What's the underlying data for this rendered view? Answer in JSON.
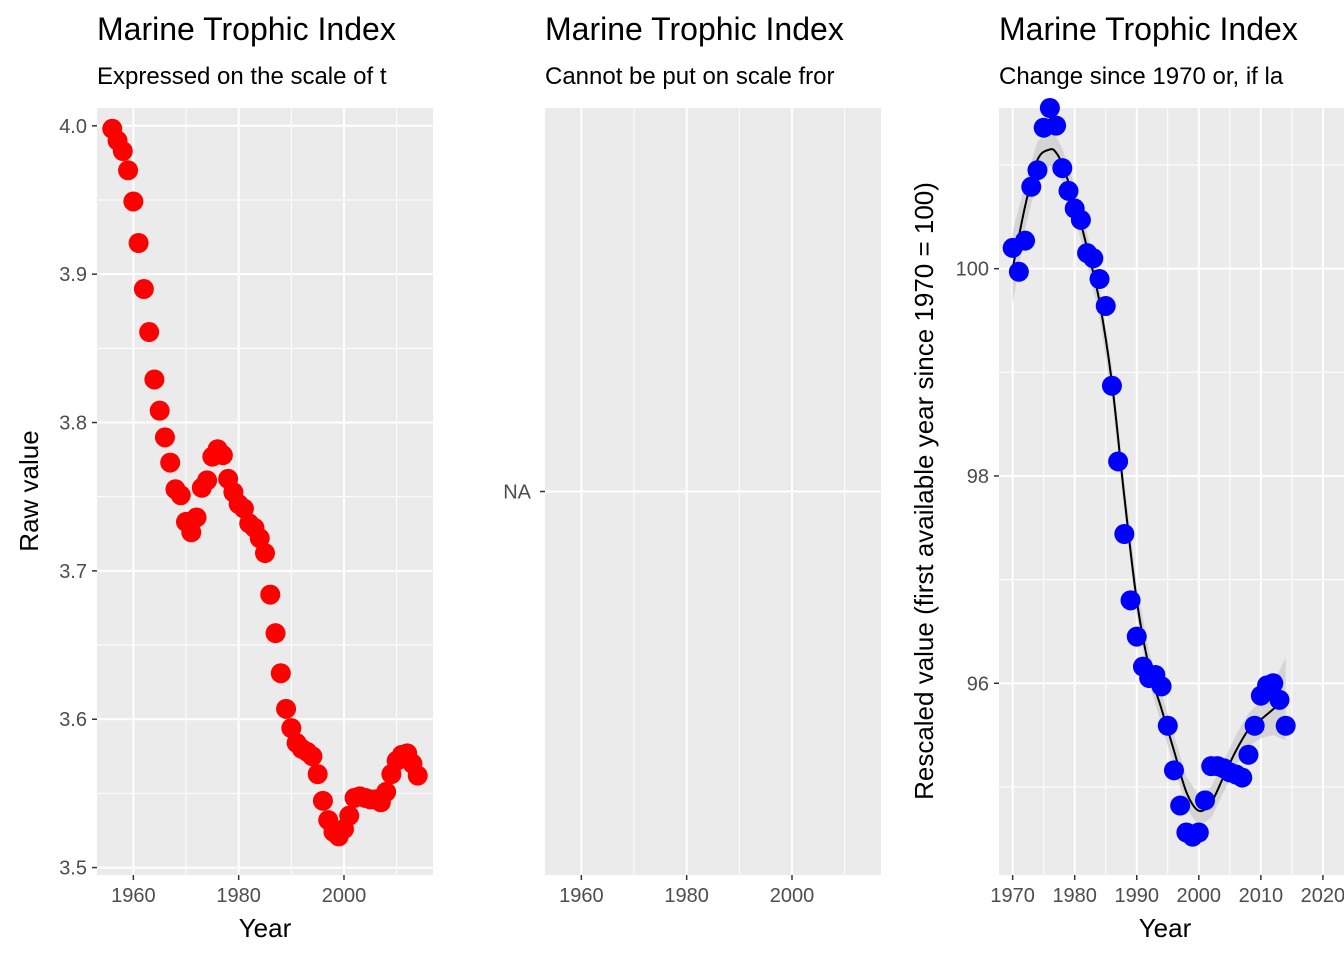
{
  "chart_data": [
    {
      "type": "scatter",
      "title": "Marine Trophic Index",
      "subtitle": "Expressed on the scale of t",
      "xlabel": "Year",
      "ylabel": "Raw value",
      "xlim": [
        1953.1,
        2016.9
      ],
      "ylim": [
        3.495,
        4.012
      ],
      "xticks": [
        1960,
        1980,
        2000
      ],
      "xtick_labels": [
        "1960",
        "1980",
        "2000"
      ],
      "yticks": [
        3.5,
        3.6,
        3.7,
        3.8,
        3.9,
        4.0
      ],
      "ytick_labels": [
        "3.5",
        "3.6",
        "3.7",
        "3.8",
        "3.9",
        "4.0"
      ],
      "grid": true,
      "point_color": "#ff0000",
      "x": [
        1956,
        1957,
        1958,
        1959,
        1960,
        1961,
        1962,
        1963,
        1964,
        1965,
        1966,
        1967,
        1968,
        1969,
        1970,
        1971,
        1972,
        1973,
        1974,
        1975,
        1976,
        1977,
        1978,
        1979,
        1980,
        1981,
        1982,
        1983,
        1984,
        1985,
        1986,
        1987,
        1988,
        1989,
        1990,
        1991,
        1992,
        1993,
        1994,
        1995,
        1996,
        1997,
        1998,
        1999,
        2000,
        2001,
        2002,
        2003,
        2004,
        2005,
        2006,
        2007,
        2008,
        2009,
        2010,
        2011,
        2012,
        2013,
        2014
      ],
      "y": [
        3.998,
        3.99,
        3.983,
        3.97,
        3.949,
        3.921,
        3.89,
        3.861,
        3.829,
        3.808,
        3.79,
        3.773,
        3.755,
        3.751,
        3.733,
        3.726,
        3.736,
        3.756,
        3.761,
        3.777,
        3.782,
        3.778,
        3.762,
        3.753,
        3.745,
        3.742,
        3.732,
        3.729,
        3.722,
        3.712,
        3.684,
        3.658,
        3.631,
        3.607,
        3.594,
        3.584,
        3.58,
        3.578,
        3.575,
        3.563,
        3.545,
        3.532,
        3.524,
        3.521,
        3.526,
        3.535,
        3.547,
        3.548,
        3.547,
        3.546,
        3.546,
        3.544,
        3.551,
        3.563,
        3.572,
        3.576,
        3.577,
        3.57,
        3.562
      ]
    },
    {
      "type": "scatter",
      "title": "Marine Trophic Index",
      "subtitle": "Cannot be put on scale fror",
      "xlabel": "",
      "ylabel": "",
      "xlim": [
        1953.1,
        2016.9
      ],
      "xticks": [
        1960,
        1980,
        2000
      ],
      "xtick_labels": [
        "1960",
        "1980",
        "2000"
      ],
      "yticks": [
        "NA"
      ],
      "ytick_labels": [
        "NA"
      ],
      "grid": true,
      "x": [],
      "y": []
    },
    {
      "type": "scatter",
      "title": "Marine Trophic Index",
      "subtitle": "Change since 1970 or, if la",
      "xlabel": "Year",
      "ylabel": "Rescaled value (first available year since 1970 = 100)",
      "xlim": [
        1967.8,
        2023.4
      ],
      "ylim": [
        94.15,
        101.55
      ],
      "xticks": [
        1970,
        1980,
        1990,
        2000,
        2010,
        2020
      ],
      "xtick_labels": [
        "1970",
        "1980",
        "1990",
        "2000",
        "2010",
        "2020"
      ],
      "yticks": [
        96,
        98,
        100
      ],
      "ytick_labels": [
        "96",
        "98",
        "100"
      ],
      "grid": true,
      "point_color": "#0000ff",
      "trend_color": "#000000",
      "band_color": "#cccccc",
      "x": [
        1970,
        1971,
        1972,
        1973,
        1974,
        1975,
        1976,
        1977,
        1978,
        1979,
        1980,
        1981,
        1982,
        1983,
        1984,
        1985,
        1986,
        1987,
        1988,
        1989,
        1990,
        1991,
        1992,
        1993,
        1994,
        1995,
        1996,
        1997,
        1998,
        1999,
        2000,
        2001,
        2002,
        2003,
        2004,
        2005,
        2006,
        2007,
        2008,
        2009,
        2010,
        2011,
        2012,
        2013,
        2014
      ],
      "y": [
        100.2,
        99.97,
        100.27,
        100.79,
        100.95,
        101.36,
        101.55,
        101.38,
        100.97,
        100.75,
        100.58,
        100.47,
        100.15,
        100.1,
        99.9,
        99.64,
        98.87,
        98.14,
        97.44,
        96.8,
        96.45,
        96.16,
        96.05,
        96.08,
        95.97,
        95.59,
        95.16,
        94.82,
        94.56,
        94.52,
        94.56,
        94.87,
        95.2,
        95.2,
        95.18,
        95.14,
        95.12,
        95.09,
        95.31,
        95.59,
        95.88,
        95.98,
        96.0,
        95.84,
        95.59
      ],
      "trend": {
        "x": [
          1970,
          1972,
          1974,
          1976,
          1977,
          1978,
          1980,
          1982,
          1984,
          1986,
          1988,
          1990,
          1992,
          1994,
          1996,
          1998,
          2000,
          2002,
          2004,
          2006,
          2008,
          2010,
          2012,
          2014
        ],
        "y": [
          100.0,
          100.6,
          101.05,
          101.15,
          101.12,
          101.0,
          100.65,
          100.2,
          99.68,
          98.9,
          97.8,
          96.8,
          96.15,
          95.75,
          95.35,
          94.95,
          94.77,
          94.85,
          95.1,
          95.35,
          95.55,
          95.65,
          95.75,
          95.85
        ],
        "band_halfwidth": [
          0.35,
          0.22,
          0.18,
          0.16,
          0.16,
          0.16,
          0.15,
          0.15,
          0.15,
          0.15,
          0.15,
          0.15,
          0.15,
          0.15,
          0.15,
          0.15,
          0.15,
          0.15,
          0.15,
          0.15,
          0.16,
          0.18,
          0.25,
          0.4
        ]
      }
    }
  ]
}
